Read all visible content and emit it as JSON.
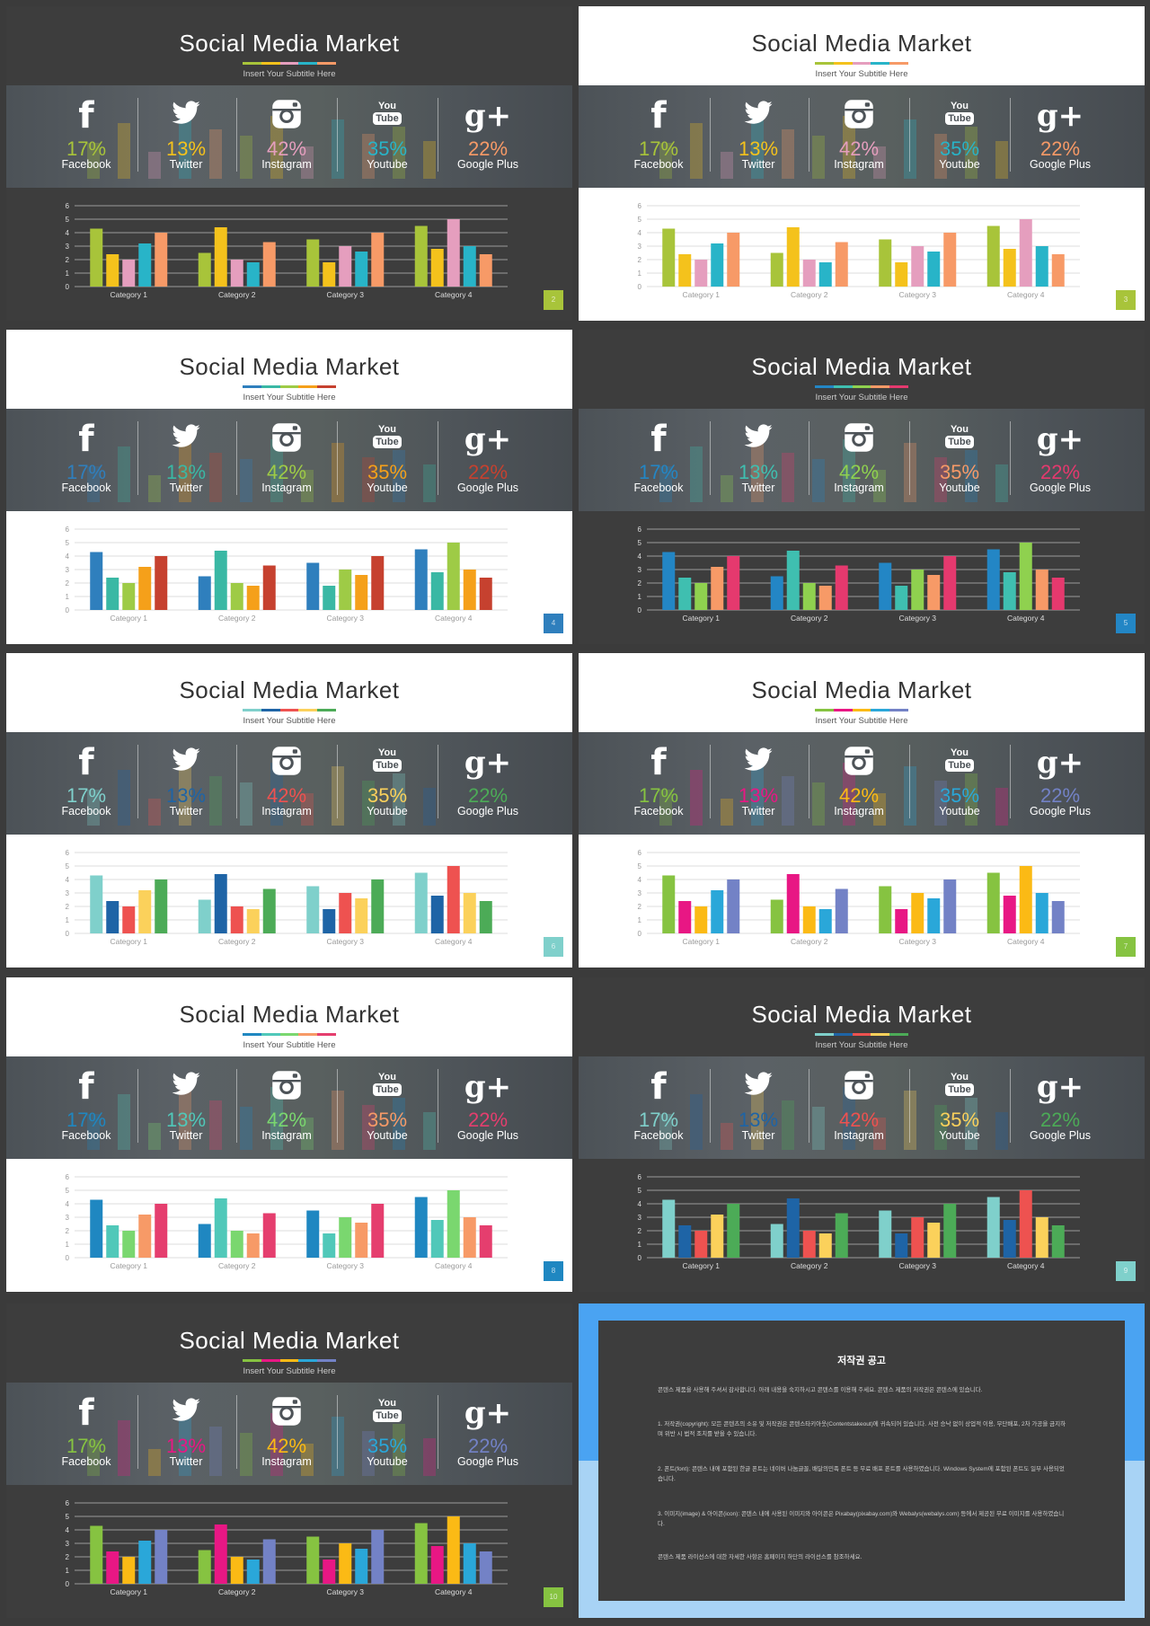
{
  "slides": [
    {
      "title": "Social Media Market",
      "subtitle": "Insert Your Subtitle  Here",
      "page": "2",
      "header": "dark",
      "chart_bg": "dark",
      "colors": [
        "#a8c43a",
        "#f4c21c",
        "#e59ebe",
        "#28b4c8",
        "#f79a67"
      ]
    },
    {
      "title": "Social Media Market",
      "subtitle": "Insert Your Subtitle  Here",
      "page": "3",
      "header": "light",
      "chart_bg": "light",
      "colors": [
        "#a8c43a",
        "#f4c21c",
        "#e59ebe",
        "#28b4c8",
        "#f79a67"
      ]
    },
    {
      "title": "Social Media Market",
      "subtitle": "Insert Your Subtitle  Here",
      "page": "4",
      "header": "light",
      "chart_bg": "light",
      "colors": [
        "#2f7fbd",
        "#3ab8a4",
        "#9ecb46",
        "#f5a01a",
        "#c6412f"
      ]
    },
    {
      "title": "Social Media Market",
      "subtitle": "Insert Your Subtitle  Here",
      "page": "5",
      "header": "dark",
      "chart_bg": "dark",
      "colors": [
        "#2386c5",
        "#3fbfb0",
        "#8fd14f",
        "#f79a67",
        "#e5396e"
      ]
    },
    {
      "title": "Social Media Market",
      "subtitle": "Insert Your Subtitle  Here",
      "page": "6",
      "header": "light",
      "chart_bg": "light",
      "colors": [
        "#7fd0cb",
        "#1e64a6",
        "#ee5250",
        "#fbd15b",
        "#4cab57"
      ]
    },
    {
      "title": "Social Media Market",
      "subtitle": "Insert Your Subtitle  Here",
      "page": "7",
      "header": "light",
      "chart_bg": "light",
      "colors": [
        "#86c341",
        "#e81784",
        "#fbba15",
        "#2aa7d9",
        "#7382c6"
      ]
    },
    {
      "title": "Social Media Market",
      "subtitle": "Insert Your Subtitle  Here",
      "page": "8",
      "header": "light",
      "chart_bg": "light",
      "colors": [
        "#1f87c1",
        "#50c8b9",
        "#7ad76f",
        "#f79a67",
        "#e53e6e"
      ]
    },
    {
      "title": "Social Media Market",
      "subtitle": "Insert Your Subtitle  Here",
      "page": "9",
      "header": "dark",
      "chart_bg": "dark",
      "colors": [
        "#7fd0cb",
        "#1e64a6",
        "#ee5250",
        "#fbd15b",
        "#4cab57"
      ]
    },
    {
      "title": "Social Media Market",
      "subtitle": "Insert Your Subtitle  Here",
      "page": "10",
      "header": "dark",
      "chart_bg": "dark",
      "colors": [
        "#86c341",
        "#e81784",
        "#fbba15",
        "#2aa7d9",
        "#7382c6"
      ]
    }
  ],
  "social": [
    {
      "icon": "facebook-icon",
      "glyph": "f",
      "pct": "17%",
      "name": "Facebook"
    },
    {
      "icon": "twitter-icon",
      "glyph": "",
      "pct": "13%",
      "name": "Twitter"
    },
    {
      "icon": "instagram-icon",
      "glyph": "",
      "pct": "42%",
      "name": "Instagram"
    },
    {
      "icon": "youtube-icon",
      "glyph": "You",
      "glyph2": "Tube",
      "pct": "35%",
      "name": "Youtube"
    },
    {
      "icon": "google-plus-icon",
      "glyph": "g+",
      "pct": "22%",
      "name": "Google Plus"
    }
  ],
  "chart_data": {
    "type": "bar",
    "categories": [
      "Category 1",
      "Category 2",
      "Category 3",
      "Category 4"
    ],
    "ylim": [
      0,
      6
    ],
    "yticks": [
      "0",
      "1",
      "2",
      "3",
      "4",
      "5",
      "6"
    ],
    "series": [
      {
        "values": [
          4.3,
          2.5,
          3.5,
          4.5
        ]
      },
      {
        "values": [
          2.4,
          4.4,
          1.8,
          2.8
        ]
      },
      {
        "values": [
          2.0,
          2.0,
          3.0,
          5.0
        ]
      },
      {
        "values": [
          3.2,
          1.8,
          2.6,
          3.0
        ]
      },
      {
        "values": [
          4.0,
          3.3,
          4.0,
          2.4
        ]
      }
    ]
  },
  "notice": {
    "title": "저작권 공고",
    "paragraphs": [
      "콘텐스 제품을 사용해 주셔서 감사합니다. 아래 내용을 숙지하시고 콘텐스를 이용해 주세요. 콘텐스 제품의 저작권은 콘텐스에 있습니다.",
      "1. 저작권(copyright): 모든 콘텐츠의 소유 및 저작권은 콘텐스타키아웃(Contentstakeout)에 귀속되어 있습니다. 사전 승낙 없이 상업적 이용, 무단배포, 2차 가공을 금지하며 위반 시 법적 조치를 받을 수 있습니다.",
      "2. 폰트(font): 콘텐스 내에 포함된 한글 폰트는 네이버 나눔글꼴, 배달의민족 폰트 등 무료 배포 폰트를 사용하였습니다. Windows System에 포함된 폰트도 일부 사용되었습니다.",
      "3. 이미지(image) & 아이콘(icon): 콘텐스 내에 사용된 이미지와 아이콘은 Pixabay(pixabay.com)와 Webalys(webalys.com) 등에서 제공된 무료 이미지를 사용하였습니다.",
      "콘텐스 제품 라이선스에 대한 자세한 사항은 홈페이지 하단의 라이선스를 참조하세요."
    ]
  }
}
